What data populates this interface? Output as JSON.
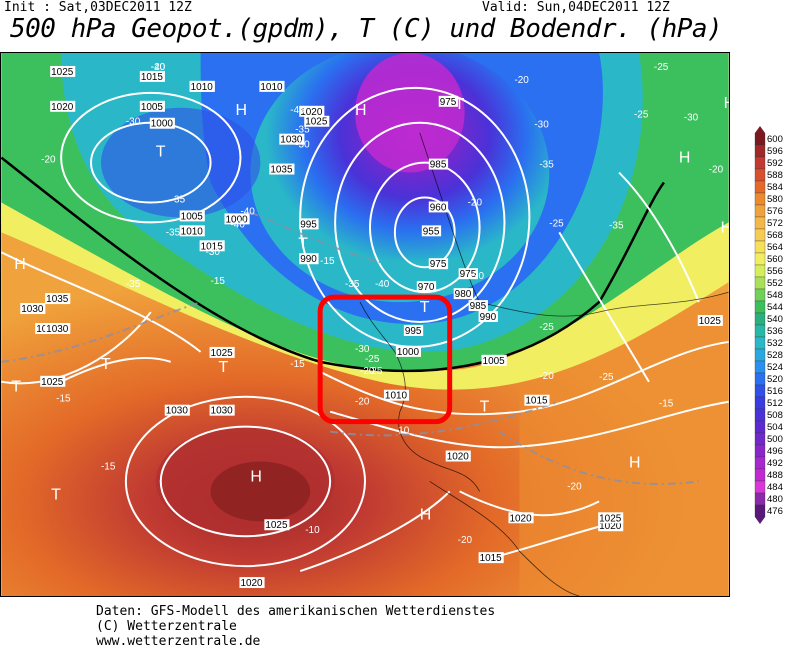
{
  "header": {
    "init": "Init : Sat,03DEC2011 12Z",
    "valid": "Valid: Sun,04DEC2011 12Z",
    "title": "500 hPa Geopot.(gpdm), T (C) und Bodendr. (hPa)"
  },
  "footer": {
    "line1": "Daten: GFS-Modell des amerikanischen Wetterdienstes",
    "line2": "(C) Wetterzentrale",
    "line3": "www.wetterzentrale.de"
  },
  "legend": {
    "values": [
      600,
      596,
      592,
      588,
      584,
      580,
      576,
      572,
      568,
      564,
      560,
      556,
      552,
      548,
      544,
      540,
      536,
      532,
      528,
      524,
      520,
      516,
      512,
      508,
      504,
      500,
      496,
      492,
      488,
      484,
      480,
      476
    ],
    "colors": [
      "#7a1a20",
      "#a02828",
      "#c03a32",
      "#d8502e",
      "#e36a28",
      "#ec8a30",
      "#f0a23c",
      "#f3b848",
      "#f6cc52",
      "#f6e05a",
      "#f2ee62",
      "#d4ee5c",
      "#a8e05a",
      "#6fd05a",
      "#3cc05e",
      "#2ab080",
      "#28b8a8",
      "#2ab8c8",
      "#2aa8e0",
      "#2a90f0",
      "#2a70f0",
      "#3050e8",
      "#3a3ce0",
      "#4a32d8",
      "#5e2ad0",
      "#7228c8",
      "#8a26c8",
      "#a828d0",
      "#c02ad0",
      "#d838d8",
      "#8a2aa8",
      "#5a1878"
    ]
  },
  "map": {
    "labels": {
      "pressure": [
        "1015",
        "1010",
        "1005",
        "1000",
        "1010",
        "1010",
        "1020",
        "1025",
        "1030",
        "1035",
        "1005",
        "1010",
        "1015",
        "1000",
        "995",
        "990",
        "1025",
        "1020",
        "975",
        "985",
        "960",
        "955",
        "970",
        "975",
        "975",
        "980",
        "985",
        "990",
        "995",
        "1000",
        "1005",
        "1010",
        "1015",
        "1020",
        "1025",
        "1030",
        "1035",
        "1030",
        "1025",
        "1020",
        "1025",
        "1030",
        "1025",
        "1020",
        "1015",
        "1020",
        "1030",
        "1025",
        "1030",
        "1005"
      ],
      "temperature": [
        "-40",
        "-30",
        "-35",
        "-35",
        "-40",
        "-30",
        "-45",
        "-35",
        "-30",
        "-20",
        "-35",
        "-40",
        "-35",
        "-25",
        "-25",
        "-30",
        "-40",
        "-25",
        "-30",
        "-25",
        "-20",
        "-20",
        "-15",
        "-20",
        "-15",
        "-15",
        "-10",
        "-15",
        "-10",
        "-20",
        "-20",
        "-25",
        "-15",
        "-20",
        "-20",
        "-15",
        "-20",
        "-25",
        "-30",
        "-35",
        "-35",
        "-25",
        "-30",
        "-20"
      ],
      "highs": [
        "H",
        "H",
        "H",
        "H",
        "H",
        "H",
        "H",
        "H",
        "H"
      ],
      "lows": [
        "T",
        "T",
        "T",
        "T",
        "T",
        "T",
        "T",
        "T",
        "T"
      ]
    },
    "highlight_color": "#ff0000"
  }
}
